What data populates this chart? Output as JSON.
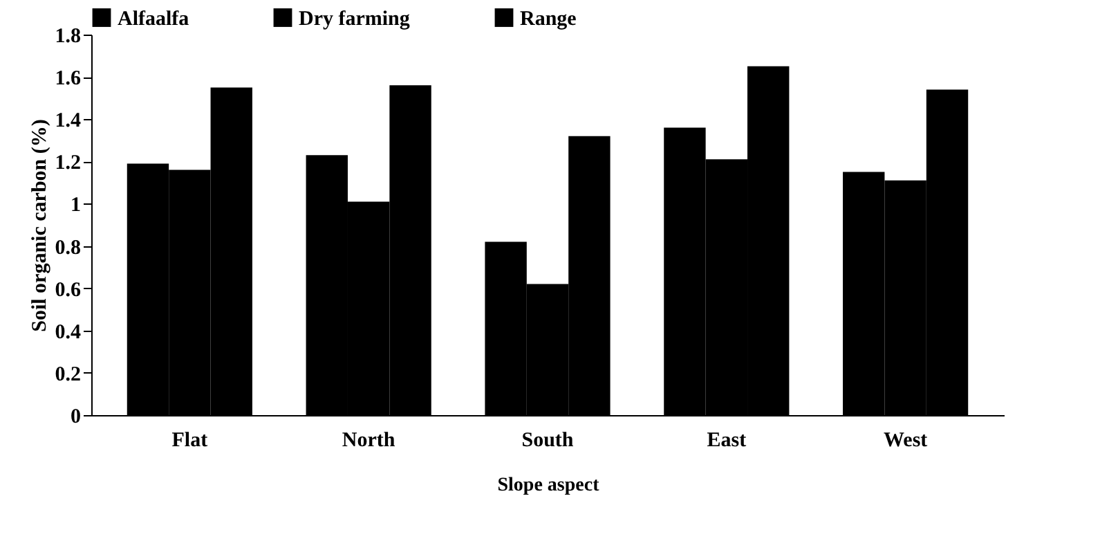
{
  "chart_data": {
    "type": "bar",
    "xlabel": "Slope aspect",
    "ylabel": "Soil organic carbon (%)",
    "categories": [
      "Flat",
      "North",
      "South",
      "East",
      "West"
    ],
    "series": [
      {
        "name": "Alfaalfa",
        "color": "#000000",
        "values": [
          1.19,
          1.23,
          0.82,
          1.36,
          1.15
        ]
      },
      {
        "name": "Dry farming",
        "color": "#000000",
        "values": [
          1.16,
          1.01,
          0.62,
          1.21,
          1.11
        ]
      },
      {
        "name": "Range",
        "color": "#000000",
        "values": [
          1.55,
          1.56,
          1.32,
          1.65,
          1.54
        ]
      }
    ],
    "ylim": [
      0,
      1.8
    ],
    "yticks": [
      0,
      0.2,
      0.4,
      0.6,
      0.8,
      1,
      1.2,
      1.4,
      1.6,
      1.8
    ],
    "grid": false,
    "legend": "top"
  }
}
